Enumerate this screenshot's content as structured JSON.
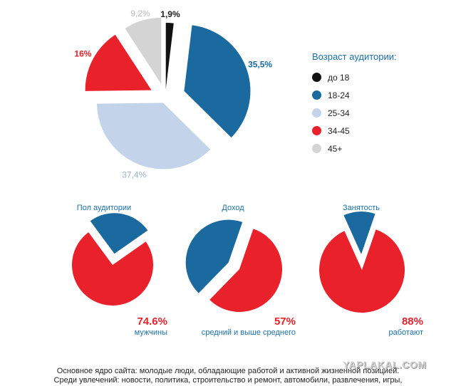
{
  "colors": {
    "black": "#111111",
    "blue": "#1a6aa0",
    "lightblue": "#c3d4ea",
    "red": "#e8212b",
    "grey": "#d4d4d4"
  },
  "chart_data": [
    {
      "type": "pie",
      "title": "Возраст аудитории:",
      "slices": [
        {
          "label": "до 18",
          "value": 1.9,
          "value_label": "1,9%",
          "color": "#111111"
        },
        {
          "label": "18-24",
          "value": 35.5,
          "value_label": "35,5%",
          "color": "#1a6aa0"
        },
        {
          "label": "25-34",
          "value": 37.4,
          "value_label": "37,4%",
          "color": "#c3d4ea"
        },
        {
          "label": "34-45",
          "value": 16,
          "value_label": "16%",
          "color": "#e8212b"
        },
        {
          "label": "45+",
          "value": 9.2,
          "value_label": "9,2%",
          "color": "#d4d4d4"
        }
      ],
      "legend_position": "right"
    },
    {
      "type": "pie",
      "title": "Пол аудитории",
      "slices": [
        {
          "value": 74.6,
          "color": "#e8212b"
        },
        {
          "value": 25.4,
          "color": "#1a6aa0"
        }
      ],
      "highlight": {
        "value_label": "74.6%",
        "label": "мужчины"
      }
    },
    {
      "type": "pie",
      "title": "Доход",
      "slices": [
        {
          "value": 57,
          "color": "#e8212b"
        },
        {
          "value": 43,
          "color": "#1a6aa0"
        }
      ],
      "highlight": {
        "value_label": "57%",
        "label": "средний и выше среднего"
      }
    },
    {
      "type": "pie",
      "title": "Занятость",
      "slices": [
        {
          "value": 88,
          "color": "#e8212b"
        },
        {
          "value": 12,
          "color": "#1a6aa0"
        }
      ],
      "highlight": {
        "value_label": "88%",
        "label": "работают"
      }
    }
  ],
  "caption": {
    "line1": "Основное ядро сайта: молодые люди, обладающие работой и активной жизненной позицией.",
    "line2": "Среди увлечений: новости, политика, строительство и ремонт, автомобили, развлечения, игры,"
  },
  "watermark": "YAPLAKAL.COM"
}
